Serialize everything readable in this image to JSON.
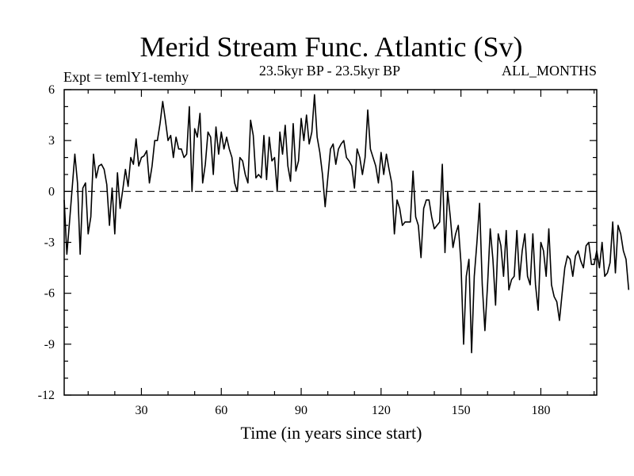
{
  "chart_data": {
    "type": "line",
    "title": "Merid Stream Func. Atlantic (Sv)",
    "subtitle_left": "Expt = temlY1-temhy",
    "subtitle_center": "23.5kyr BP - 23.5kyr BP",
    "subtitle_right": "ALL_MONTHS",
    "xlabel": "Time (in years since start)",
    "ylabel": "",
    "xlim": [
      1,
      201
    ],
    "ylim": [
      -12,
      6
    ],
    "xticks": [
      30,
      60,
      90,
      120,
      150,
      180
    ],
    "yticks": [
      6,
      3,
      0,
      -3,
      -6,
      -9,
      -12
    ],
    "reference_line": 0,
    "x_start": 1,
    "x_step": 1,
    "series": [
      {
        "name": "Merid Stream Func.",
        "color": "#000000",
        "values": [
          -0.5,
          -3.7,
          -1.8,
          0.2,
          2.2,
          0.5,
          -3.7,
          0.2,
          0.5,
          -2.5,
          -1.5,
          2.2,
          0.8,
          1.5,
          1.6,
          1.3,
          0.4,
          -2.0,
          0.2,
          -2.5,
          1.1,
          -1.0,
          0.1,
          1.3,
          0.3,
          2.0,
          1.6,
          3.1,
          1.5,
          2.0,
          2.1,
          2.4,
          0.5,
          1.5,
          3.0,
          3.0,
          4.0,
          5.3,
          4.2,
          3.0,
          3.3,
          2.0,
          3.2,
          2.5,
          2.5,
          2.0,
          2.2,
          5.0,
          0.0,
          3.7,
          3.2,
          4.6,
          0.5,
          1.6,
          3.5,
          3.2,
          1.0,
          3.8,
          2.2,
          3.5,
          2.5,
          3.2,
          2.5,
          2.0,
          0.5,
          0.0,
          2.0,
          1.8,
          1.0,
          0.5,
          4.2,
          3.3,
          0.8,
          1.0,
          0.8,
          3.3,
          0.7,
          3.2,
          1.8,
          2.0,
          0.0,
          3.5,
          2.2,
          3.9,
          1.5,
          0.6,
          4.0,
          1.2,
          1.8,
          4.3,
          3.0,
          4.5,
          2.8,
          3.5,
          5.7,
          3.2,
          2.3,
          1.0,
          -0.9,
          0.8,
          2.5,
          2.8,
          1.6,
          2.5,
          2.8,
          3.0,
          2.0,
          1.8,
          1.5,
          0.2,
          2.5,
          2.0,
          1.0,
          2.0,
          4.8,
          2.5,
          2.0,
          1.5,
          0.5,
          2.3,
          1.0,
          2.2,
          1.3,
          0.5,
          -2.5,
          -0.5,
          -1.0,
          -2.0,
          -1.8,
          -1.8,
          -1.8,
          1.2,
          -1.5,
          -2.0,
          -3.9,
          -1.0,
          -0.5,
          -0.5,
          -1.5,
          -2.2,
          -2.0,
          -1.8,
          1.6,
          -3.6,
          0.0,
          -1.5,
          -3.3,
          -2.5,
          -2.0,
          -4.2,
          -9.0,
          -5.0,
          -4.0,
          -9.5,
          -5.0,
          -3.0,
          -0.7,
          -5.5,
          -8.2,
          -5.5,
          -2.2,
          -4.0,
          -6.7,
          -2.5,
          -3.2,
          -5.0,
          -2.3,
          -5.8,
          -5.2,
          -5.0,
          -2.3,
          -5.2,
          -3.5,
          -2.5,
          -5.0,
          -5.5,
          -2.5,
          -5.5,
          -7.0,
          -3.0,
          -3.5,
          -5.0,
          -2.2,
          -5.5,
          -6.2,
          -6.5,
          -7.6,
          -6.0,
          -4.5,
          -3.8,
          -4.0,
          -5.0,
          -3.8,
          -3.5,
          -4.1,
          -4.5,
          -3.2,
          -3.0,
          -4.3,
          -4.3,
          -3.5,
          -4.5,
          -3.0,
          -5.0,
          -4.8,
          -4.2,
          -1.8,
          -4.8,
          -2.0,
          -2.5,
          -3.5,
          -4.0,
          -5.8
        ]
      }
    ]
  }
}
